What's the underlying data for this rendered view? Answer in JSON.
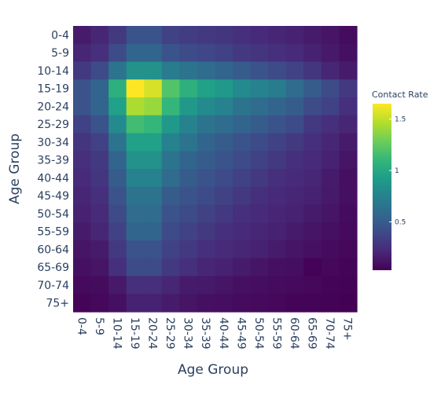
{
  "chart_data": {
    "type": "heatmap",
    "title": "",
    "xlabel": "Age Group",
    "ylabel": "Age Group",
    "x": [
      "0-4",
      "5-9",
      "10-14",
      "15-19",
      "20-24",
      "25-29",
      "30-34",
      "35-39",
      "40-44",
      "45-49",
      "50-54",
      "55-59",
      "60-64",
      "65-69",
      "70-74",
      "75+"
    ],
    "y": [
      "0-4",
      "5-9",
      "10-14",
      "15-19",
      "20-24",
      "25-29",
      "30-34",
      "35-39",
      "40-44",
      "45-49",
      "50-54",
      "55-59",
      "60-64",
      "65-69",
      "70-74",
      "75+"
    ],
    "z": [
      [
        0.15,
        0.2,
        0.3,
        0.45,
        0.45,
        0.35,
        0.32,
        0.3,
        0.28,
        0.25,
        0.22,
        0.2,
        0.18,
        0.15,
        0.12,
        0.08
      ],
      [
        0.2,
        0.25,
        0.4,
        0.55,
        0.55,
        0.45,
        0.4,
        0.38,
        0.35,
        0.3,
        0.28,
        0.25,
        0.22,
        0.18,
        0.14,
        0.1
      ],
      [
        0.3,
        0.4,
        0.65,
        0.85,
        0.85,
        0.7,
        0.65,
        0.6,
        0.55,
        0.5,
        0.45,
        0.4,
        0.35,
        0.28,
        0.2,
        0.15
      ],
      [
        0.45,
        0.55,
        1.05,
        1.65,
        1.55,
        1.2,
        1.05,
        0.95,
        0.9,
        0.8,
        0.75,
        0.7,
        0.6,
        0.5,
        0.4,
        0.3
      ],
      [
        0.45,
        0.55,
        0.95,
        1.45,
        1.4,
        1.1,
        0.9,
        0.8,
        0.75,
        0.65,
        0.6,
        0.55,
        0.5,
        0.4,
        0.35,
        0.25
      ],
      [
        0.35,
        0.45,
        0.8,
        1.15,
        1.1,
        0.9,
        0.75,
        0.65,
        0.6,
        0.55,
        0.5,
        0.45,
        0.4,
        0.3,
        0.25,
        0.2
      ],
      [
        0.28,
        0.35,
        0.65,
        0.95,
        0.95,
        0.75,
        0.65,
        0.55,
        0.5,
        0.45,
        0.4,
        0.35,
        0.3,
        0.25,
        0.2,
        0.15
      ],
      [
        0.25,
        0.3,
        0.55,
        0.85,
        0.85,
        0.65,
        0.55,
        0.5,
        0.45,
        0.4,
        0.35,
        0.3,
        0.25,
        0.22,
        0.18,
        0.12
      ],
      [
        0.22,
        0.28,
        0.5,
        0.75,
        0.75,
        0.6,
        0.5,
        0.45,
        0.4,
        0.35,
        0.3,
        0.25,
        0.22,
        0.2,
        0.15,
        0.1
      ],
      [
        0.2,
        0.25,
        0.45,
        0.65,
        0.65,
        0.5,
        0.45,
        0.4,
        0.35,
        0.3,
        0.25,
        0.22,
        0.2,
        0.18,
        0.14,
        0.1
      ],
      [
        0.18,
        0.22,
        0.4,
        0.6,
        0.6,
        0.45,
        0.4,
        0.35,
        0.3,
        0.25,
        0.22,
        0.2,
        0.18,
        0.15,
        0.12,
        0.08
      ],
      [
        0.15,
        0.2,
        0.35,
        0.55,
        0.55,
        0.4,
        0.35,
        0.3,
        0.25,
        0.22,
        0.2,
        0.18,
        0.15,
        0.12,
        0.1,
        0.07
      ],
      [
        0.12,
        0.15,
        0.3,
        0.45,
        0.45,
        0.35,
        0.3,
        0.25,
        0.22,
        0.2,
        0.18,
        0.15,
        0.12,
        0.1,
        0.08,
        0.06
      ],
      [
        0.1,
        0.12,
        0.25,
        0.4,
        0.4,
        0.3,
        0.25,
        0.2,
        0.18,
        0.15,
        0.12,
        0.1,
        0.09,
        0.04,
        0.06,
        0.05
      ],
      [
        0.07,
        0.08,
        0.14,
        0.25,
        0.25,
        0.2,
        0.15,
        0.14,
        0.12,
        0.1,
        0.09,
        0.08,
        0.07,
        0.06,
        0.05,
        0.04
      ],
      [
        0.05,
        0.06,
        0.1,
        0.18,
        0.18,
        0.15,
        0.12,
        0.1,
        0.09,
        0.08,
        0.07,
        0.06,
        0.05,
        0.05,
        0.04,
        0.03
      ]
    ],
    "zmin": 0.03,
    "zmax": 1.65,
    "colorscale": "Viridis",
    "colorscale_stops": [
      "#440154",
      "#482878",
      "#3e4989",
      "#31688e",
      "#26828e",
      "#1f9e89",
      "#35b779",
      "#6ece58",
      "#b5de2b",
      "#fde725"
    ],
    "colorbar": {
      "title": "Contact Rate",
      "tickvals": [
        0.5,
        1,
        1.5
      ],
      "ticktext": [
        "0.5",
        "1",
        "1.5"
      ]
    },
    "ylim_order": "top-to-bottom",
    "grid": false,
    "legend_placement": "right"
  }
}
